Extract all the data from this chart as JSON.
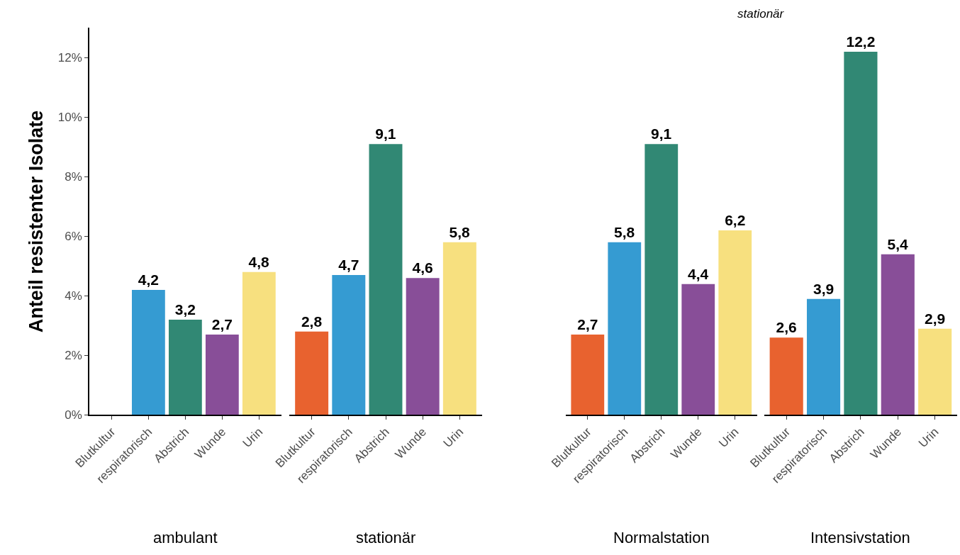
{
  "chart_data": [
    {
      "type": "bar",
      "xlabel": "ambulant",
      "ylabel": "Anteil resistenter Isolate",
      "categories": [
        "Blutkultur",
        "respiratorisch",
        "Abstrich",
        "Wunde",
        "Urin"
      ],
      "values": [
        null,
        4.2,
        3.2,
        2.7,
        4.8
      ],
      "value_labels": [
        null,
        "4,2",
        "3,2",
        "2,7",
        "4,8"
      ],
      "colors": [
        "#e8622f",
        "#359bd2",
        "#318874",
        "#884e98",
        "#f7e07f"
      ],
      "ylim": [
        0,
        13
      ],
      "yticks": [
        {
          "value": 0,
          "label": "0%"
        },
        {
          "value": 2,
          "label": "2%"
        },
        {
          "value": 4,
          "label": "4%"
        },
        {
          "value": 6,
          "label": "6%"
        },
        {
          "value": 8,
          "label": "8%"
        },
        {
          "value": 10,
          "label": "10%"
        },
        {
          "value": 12,
          "label": "12%"
        }
      ]
    },
    {
      "type": "bar",
      "xlabel": "stationär",
      "categories": [
        "Blutkultur",
        "respiratorisch",
        "Abstrich",
        "Wunde",
        "Urin"
      ],
      "values": [
        2.8,
        4.7,
        9.1,
        4.6,
        5.8
      ],
      "value_labels": [
        "2,8",
        "4,7",
        "9,1",
        "4,6",
        "5,8"
      ],
      "colors": [
        "#e8622f",
        "#359bd2",
        "#318874",
        "#884e98",
        "#f7e07f"
      ],
      "tick_labels": "x"
    },
    {
      "type": "bar",
      "title": "stationär",
      "xlabel": "Normalstation",
      "categories": [
        "Blutkultur",
        "respiratorisch",
        "Abstrich",
        "Wunde",
        "Urin"
      ],
      "values": [
        2.7,
        5.8,
        9.1,
        4.4,
        6.2
      ],
      "value_labels": [
        "2,7",
        "5,8",
        "9,1",
        "4,4",
        "6,2"
      ],
      "colors": [
        "#e8622f",
        "#359bd2",
        "#318874",
        "#884e98",
        "#f7e07f"
      ],
      "tick_labels": "x"
    },
    {
      "type": "bar",
      "xlabel": "Intensivstation",
      "categories": [
        "Blutkultur",
        "respiratorisch",
        "Abstrich",
        "Wunde",
        "Urin"
      ],
      "values": [
        2.6,
        3.9,
        12.2,
        5.4,
        2.9
      ],
      "value_labels": [
        "2,6",
        "3,9",
        "12,2",
        "5,4",
        "2,9"
      ],
      "colors": [
        "#e8622f",
        "#359bd2",
        "#318874",
        "#884e98",
        "#f7e07f"
      ],
      "tick_labels": "x"
    }
  ]
}
